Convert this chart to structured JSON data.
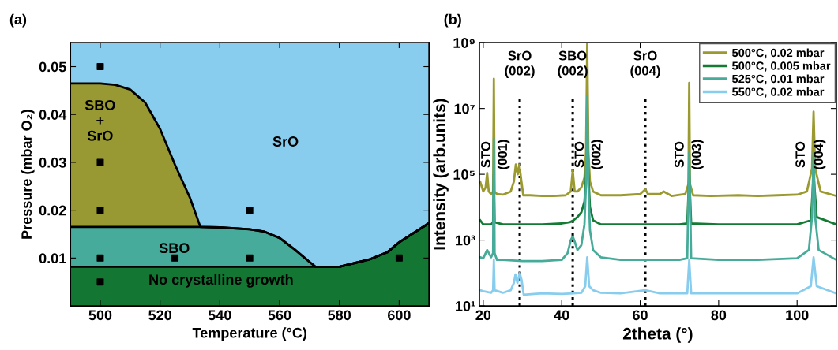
{
  "chart_data": [
    {
      "type": "area",
      "stacked": true,
      "title": "(a)",
      "x": [
        490,
        500,
        505,
        510,
        515,
        520,
        525,
        530,
        533.5,
        540,
        550,
        555,
        560,
        565,
        570,
        572,
        580,
        590,
        596,
        600,
        610
      ],
      "xlabel": "Temperature (°C)",
      "ylabel": "Pressure (mbar O₂)",
      "xlim": [
        490,
        610
      ],
      "xticks": [
        500,
        520,
        540,
        560,
        580,
        600
      ],
      "ylim": [
        0,
        0.055
      ],
      "yticks": [
        0.01,
        0.02,
        0.03,
        0.04,
        0.05
      ],
      "series": [
        {
          "type": "area",
          "color": "#137633",
          "values": [
            0.0082,
            0.0082,
            0.0082,
            0.0082,
            0.0082,
            0.0082,
            0.0082,
            0.0082,
            0.0082,
            0.0082,
            0.0082,
            0.0082,
            0.0082,
            0.0082,
            0.0082,
            0.0082,
            0.0082,
            0.0097,
            0.0112,
            0.0133,
            0.0173
          ]
        },
        {
          "type": "area",
          "color": "#46ab9a",
          "values": [
            0.0083,
            0.0083,
            0.0083,
            0.0083,
            0.0083,
            0.0083,
            0.0083,
            0.0083,
            0.0083,
            0.0082,
            0.0078,
            0.0073,
            0.006,
            0.0036,
            0.001,
            0,
            0,
            0,
            0,
            0,
            0
          ]
        },
        {
          "type": "area",
          "color": "#999933",
          "values": [
            0.03,
            0.03,
            0.0297,
            0.0287,
            0.026,
            0.0205,
            0.013,
            0.0061,
            0,
            0,
            0,
            0,
            0,
            0,
            0,
            0,
            0,
            0,
            0,
            0,
            0
          ]
        },
        {
          "type": "area",
          "color": "#89cdee",
          "values": [
            0.0085,
            0.0085,
            0.0088,
            0.0098,
            0.0125,
            0.018,
            0.0255,
            0.0324,
            0.0385,
            0.0386,
            0.039,
            0.0395,
            0.0408,
            0.0432,
            0.0458,
            0.0468,
            0.0468,
            0.0453,
            0.0438,
            0.0417,
            0.0377
          ]
        },
        {
          "type": "scatter",
          "marker": "square",
          "color": "#000000",
          "x": [
            500,
            500,
            500,
            500,
            500,
            525,
            550,
            550,
            600
          ],
          "values": [
            0.05,
            0.03,
            0.02,
            0.01,
            0.005,
            0.01,
            0.01,
            0.02,
            0.01
          ]
        }
      ],
      "annotations": [
        "SBO\n+\nSrO",
        "SrO",
        "SBO",
        "No crystalline growth"
      ]
    },
    {
      "type": "line",
      "title": "(b)",
      "xlabel": "2theta (°)",
      "ylabel": "Intensity (arb.units)",
      "log": "y",
      "legend": "top right",
      "xlim": [
        19,
        110
      ],
      "xticks": [
        20,
        40,
        60,
        80,
        100
      ],
      "ylim": [
        10,
        1000000000
      ],
      "yticks": [
        {
          "value": 10,
          "label": "10¹"
        },
        {
          "value": 1000,
          "label": "10³"
        },
        {
          "value": 100000,
          "label": "10⁵"
        },
        {
          "value": 10000000,
          "label": "10⁷"
        },
        {
          "value": 1000000000,
          "label": "10⁹"
        }
      ],
      "series": [
        {
          "name": "500°C, 0.02 mbar",
          "color": "#9a9a30",
          "x": [
            19.2,
            20,
            20.6,
            21,
            21.4,
            22,
            22.5,
            22.7,
            22.9,
            23.5,
            25,
            27,
            27.8,
            28.3,
            28.8,
            29.2,
            29.6,
            30.2,
            32,
            35,
            38,
            41,
            42.3,
            42.8,
            43.3,
            44,
            45,
            45.8,
            46.2,
            46.5,
            46.8,
            47.2,
            48,
            50,
            55,
            60,
            61.3,
            62,
            65,
            66,
            68,
            71.5,
            72.3,
            72.5,
            72.7,
            73.5,
            78,
            85,
            90,
            95,
            100,
            102.5,
            103.8,
            104.2,
            104.6,
            106,
            110
          ],
          "values": [
            60000,
            30000,
            40000,
            110000,
            30000,
            25000,
            30000,
            80000000,
            30000,
            25000,
            24000,
            30000,
            60000,
            200000,
            100000,
            200000,
            80000,
            23000,
            23000,
            22000,
            22000,
            23000,
            30000,
            130000,
            30000,
            30000,
            40000,
            80000,
            500000,
            1000000000,
            500000,
            60000,
            30000,
            23000,
            23000,
            25000,
            35000,
            25000,
            25000,
            30000,
            22000,
            25000,
            50000,
            60000000,
            50000,
            23000,
            22000,
            23000,
            22000,
            23000,
            24000,
            30000,
            150000,
            8000000,
            150000,
            30000,
            22000
          ]
        },
        {
          "name": "500°C, 0.005 mbar",
          "color": "#157a34",
          "x": [
            19.2,
            20,
            22,
            22.5,
            22.7,
            22.9,
            25,
            30,
            35,
            40,
            42,
            43,
            44,
            45,
            45.8,
            46.2,
            46.5,
            46.8,
            47.2,
            48,
            50,
            55,
            60,
            65,
            70,
            72,
            72.5,
            73,
            80,
            90,
            100,
            103.5,
            104.2,
            105,
            110
          ],
          "values": [
            4000,
            3000,
            3000,
            3500,
            100000,
            3500,
            3000,
            3000,
            3000,
            3200,
            3500,
            4000,
            5000,
            7000,
            15000,
            100000,
            1000000,
            100000,
            10000,
            4000,
            3000,
            3000,
            3000,
            3000,
            3000,
            3200,
            100000,
            3200,
            3000,
            3000,
            3000,
            4000,
            100000,
            5000,
            3000
          ]
        },
        {
          "name": "525°C, 0.01 mbar",
          "color": "#46ab98",
          "x": [
            19.2,
            20,
            21,
            22,
            22.5,
            22.7,
            22.9,
            23.5,
            25,
            30,
            35,
            40,
            41.5,
            42.3,
            42.8,
            43.3,
            44,
            45,
            45.8,
            46.2,
            46.5,
            46.8,
            47.2,
            48,
            50,
            55,
            60,
            65,
            70,
            72,
            72.5,
            73,
            80,
            90,
            100,
            103,
            103.8,
            104.2,
            104.6,
            105.5,
            110
          ],
          "values": [
            300,
            280,
            500,
            300,
            400,
            1200000,
            400,
            250,
            250,
            230,
            230,
            250,
            400,
            1000,
            1300,
            900,
            500,
            700,
            3000,
            50000,
            23000000,
            50000,
            2000,
            500,
            300,
            250,
            250,
            250,
            250,
            280,
            500000,
            280,
            250,
            250,
            280,
            500,
            5000,
            500000,
            5000,
            500,
            250
          ]
        },
        {
          "name": "550°C, 0.02 mbar",
          "color": "#88cdee",
          "x": [
            19.2,
            20,
            22,
            22.5,
            22.7,
            22.9,
            25,
            27,
            27.8,
            28.2,
            28.7,
            29.3,
            29.8,
            30.3,
            35,
            40,
            43,
            45,
            46,
            46.5,
            47,
            48,
            50,
            55,
            61.3,
            65,
            70,
            72,
            72.5,
            73,
            80,
            90,
            100,
            103.5,
            104.2,
            105,
            110
          ],
          "values": [
            30,
            28,
            25,
            30,
            250,
            30,
            25,
            30,
            50,
            90,
            50,
            100,
            60,
            22,
            24,
            23,
            24,
            25,
            40,
            300,
            40,
            30,
            25,
            24,
            30,
            24,
            24,
            24,
            250,
            24,
            24,
            24,
            24,
            40,
            300,
            40,
            24
          ]
        }
      ],
      "ref_lines": [
        {
          "axis": "x",
          "value": 29.3,
          "label": "SrO\n(002)",
          "color": "#000000",
          "line_style": "dotted"
        },
        {
          "axis": "x",
          "value": 42.8,
          "label": "SBO\n(002)",
          "color": "#000000",
          "line_style": "dotted"
        },
        {
          "axis": "x",
          "value": 61.3,
          "label": "SrO\n(004)",
          "color": "#000000",
          "line_style": "dotted"
        }
      ],
      "annotations": [
        "STO",
        "(001)",
        "STO",
        "(002)",
        "STO",
        "(003)",
        "STO",
        "(004)"
      ]
    }
  ]
}
